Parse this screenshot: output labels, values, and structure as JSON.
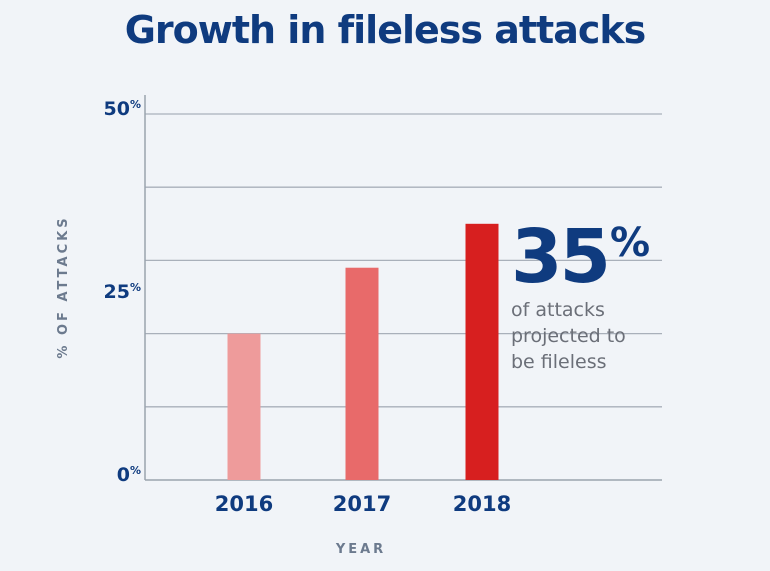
{
  "chart_data": {
    "type": "bar",
    "title": "Growth in fileless attacks",
    "xlabel": "YEAR",
    "ylabel": "% OF ATTACKS",
    "ylim": [
      0,
      50
    ],
    "y_ticks": [
      {
        "value": 0,
        "label": "0%"
      },
      {
        "value": 25,
        "label": "25%"
      },
      {
        "value": 50,
        "label": "50%"
      }
    ],
    "grid": true,
    "categories": [
      "2016",
      "2017",
      "2018"
    ],
    "values": [
      20,
      29,
      35
    ],
    "colors": [
      "#ee9b9b",
      "#e86a6a",
      "#d71f1f"
    ],
    "annotation": {
      "number": "35%",
      "text_lines": [
        "of attacks",
        "projected to",
        "be fileless"
      ]
    }
  }
}
